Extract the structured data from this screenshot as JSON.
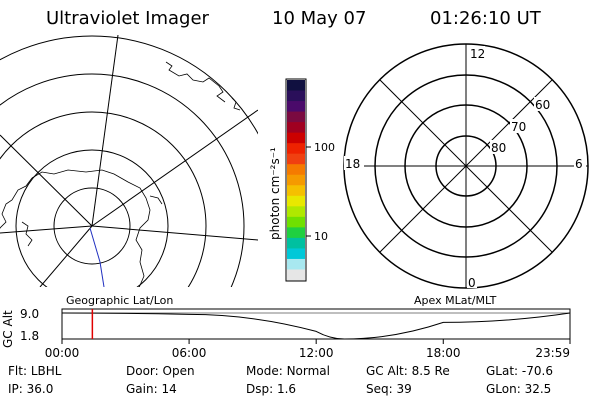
{
  "header": {
    "instrument": "Ultraviolet Imager",
    "date": "10 May 07",
    "time": "01:26:10 UT"
  },
  "panels": {
    "left_label": "Geographic Lat/Lon",
    "right_label": "Apex MLat/MLT"
  },
  "colorbar": {
    "unit_label": "photon cm⁻²s⁻¹",
    "ticks": [
      "100",
      "10"
    ],
    "colors": [
      "#101040",
      "#2a0f5a",
      "#4a0a6a",
      "#7a0a40",
      "#a00020",
      "#cc0000",
      "#ee2200",
      "#f04010",
      "#f57a00",
      "#f59a00",
      "#f5c000",
      "#e8e800",
      "#b0e800",
      "#70e000",
      "#20d040",
      "#00c0a0",
      "#00c8d8",
      "#a8e8f0",
      "#e6e6e6"
    ]
  },
  "polar": {
    "mlt_labels": [
      "12",
      "18",
      "6",
      "0"
    ],
    "lat_labels": [
      "60",
      "70",
      "80"
    ]
  },
  "timeline": {
    "ylabel": "GC Alt",
    "y_ticks": [
      "9.0",
      "1.8"
    ],
    "x_ticks": [
      "00:00",
      "06:00",
      "12:00",
      "18:00",
      "23:59"
    ],
    "current_time": "01:26"
  },
  "info": {
    "flt_label": "Flt:",
    "flt_value": "LBHL",
    "door_label": "Door:",
    "door_value": "Open",
    "mode_label": "Mode:",
    "mode_value": "Normal",
    "gcalt_label": "GC Alt:",
    "gcalt_value": "8.5 Re",
    "glat_label": "GLat:",
    "glat_value": "-70.6",
    "ip_label": "IP:",
    "ip_value": "36.0",
    "gain_label": "Gain:",
    "gain_value": "14",
    "dsp_label": "Dsp:",
    "dsp_value": "1.6",
    "seq_label": "Seq:",
    "seq_value": "39",
    "glon_label": "GLon:",
    "glon_value": "32.5"
  },
  "chart_data": {
    "type": "line",
    "title": "",
    "xlabel": "",
    "ylabel": "GC Alt",
    "x": [
      "00:00",
      "06:00",
      "12:00",
      "13:20",
      "18:00",
      "23:59"
    ],
    "series": [
      {
        "values": [
          9.0,
          8.6,
          3.9,
          1.8,
          6.4,
          9.0
        ]
      }
    ],
    "ylim": [
      1.8,
      9.0
    ],
    "x_ticks": [
      "00:00",
      "06:00",
      "12:00",
      "18:00",
      "23:59"
    ],
    "marker_time": "01:26"
  }
}
